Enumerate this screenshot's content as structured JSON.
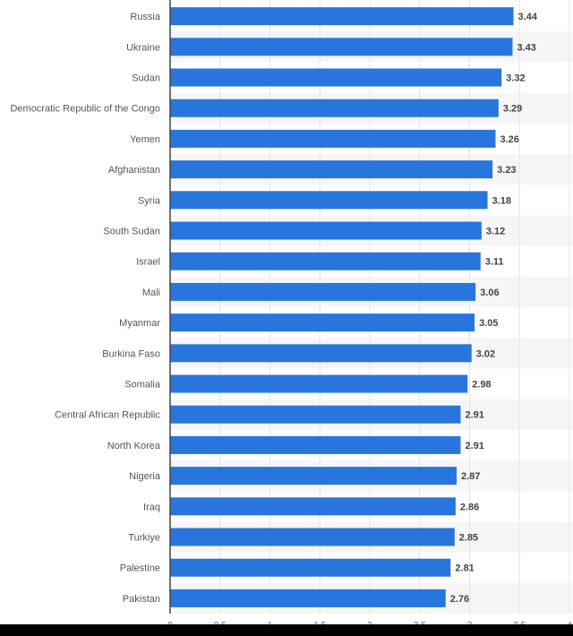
{
  "chart_data": {
    "type": "bar",
    "orientation": "horizontal",
    "title": "",
    "xlabel": "",
    "ylabel": "",
    "categories": [
      "Russia",
      "Ukraine",
      "Sudan",
      "Democratic Republic of the Congo",
      "Yemen",
      "Afghanistan",
      "Syria",
      "South Sudan",
      "Israel",
      "Mali",
      "Myanmar",
      "Burkina Faso",
      "Somalia",
      "Central African Republic",
      "North Korea",
      "Nigeria",
      "Iraq",
      "Turkiye",
      "Palestine",
      "Pakistan"
    ],
    "values": [
      3.44,
      3.43,
      3.32,
      3.29,
      3.26,
      3.23,
      3.18,
      3.12,
      3.11,
      3.06,
      3.05,
      3.02,
      2.98,
      2.91,
      2.91,
      2.87,
      2.86,
      2.85,
      2.81,
      2.76
    ],
    "value_labels": [
      "3.44",
      "3.43",
      "3.32",
      "3.29",
      "3.26",
      "3.23",
      "3.18",
      "3.12",
      "3.11",
      "3.06",
      "3.05",
      "3.02",
      "2.98",
      "2.91",
      "2.91",
      "2.87",
      "2.86",
      "2.85",
      "2.81",
      "2.76"
    ],
    "xlim": [
      0,
      4
    ],
    "x_ticks": [
      "0",
      "0.5",
      "1",
      "1.5",
      "2",
      "2.5",
      "3",
      "3.5",
      "4"
    ],
    "grid": true,
    "bar_color": "#2876dd"
  }
}
